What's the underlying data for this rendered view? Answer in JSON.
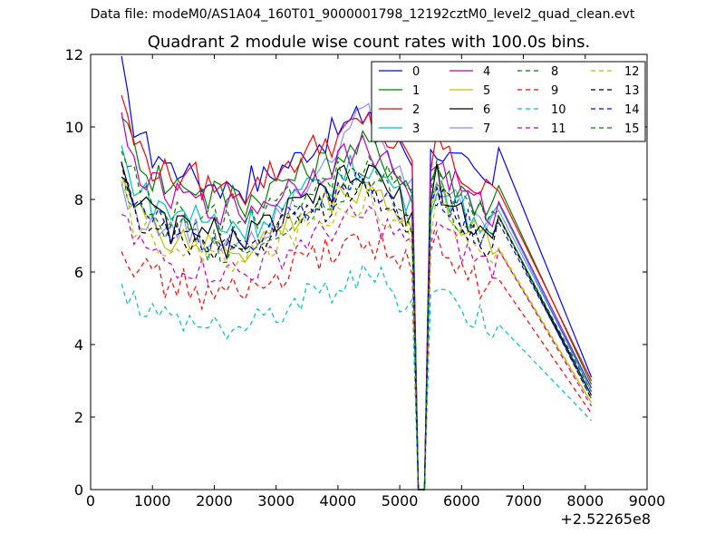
{
  "figure": {
    "suptitle": "Data file: modeM0/AS1A04_160T01_9000001798_12192cztM0_level2_quad_clean.evt",
    "title": "Quadrant 2 module wise count rates with 100.0s bins.",
    "x_offset_label": "+2.52265e8"
  },
  "chart_data": {
    "type": "line",
    "title": "Quadrant 2 module wise count rates with 100.0s bins.",
    "xlabel": "",
    "ylabel": "",
    "xlim": [
      0,
      9000
    ],
    "ylim": [
      0,
      12
    ],
    "x_offset": 252265000,
    "xticks": [
      "0",
      "1000",
      "2000",
      "3000",
      "4000",
      "5000",
      "6000",
      "7000",
      "8000",
      "9000"
    ],
    "yticks": [
      "0",
      "2",
      "4",
      "6",
      "8",
      "10",
      "12"
    ],
    "grid": false,
    "legend": {
      "placement": "top-right",
      "columns": 4
    },
    "series": [
      {
        "name": "0",
        "color": "#0000ff",
        "dash": "solid",
        "base": [
          11.6,
          10.6,
          10.1,
          9.9,
          9.5,
          9.2,
          9.3,
          9.0,
          8.9,
          8.8,
          9.0,
          8.6,
          8.7,
          8.5,
          8.4,
          8.6,
          8.4,
          8.3,
          8.5,
          8.4,
          8.3,
          8.6,
          8.5,
          8.6,
          8.7,
          8.8,
          8.9,
          9.0,
          9.1,
          9.2,
          9.4,
          9.5,
          9.6,
          9.7,
          9.8,
          9.9,
          10.0,
          10.1,
          10.2,
          10.3,
          10.5,
          10.4,
          10.2,
          10.0,
          9.9,
          9.7,
          9.5,
          9.2,
          0.0,
          0.0,
          9.2,
          9.5,
          9.3,
          9.1,
          9.0,
          8.9,
          8.8,
          8.6,
          8.5,
          8.4,
          8.4,
          9.0,
          3.1
        ]
      },
      {
        "name": "1",
        "color": "#008000",
        "dash": "solid",
        "base": [
          10.6,
          9.8,
          9.4,
          9.2,
          8.9,
          8.6,
          8.7,
          8.4,
          8.3,
          8.4,
          8.6,
          8.3,
          8.4,
          8.2,
          8.0,
          8.3,
          8.1,
          8.0,
          8.2,
          8.0,
          7.9,
          8.1,
          8.0,
          8.2,
          8.3,
          8.4,
          8.5,
          8.6,
          8.6,
          8.7,
          8.8,
          8.9,
          9.0,
          9.0,
          9.1,
          9.2,
          9.3,
          9.3,
          9.4,
          9.5,
          9.5,
          9.3,
          9.1,
          9.0,
          8.9,
          8.7,
          8.5,
          8.2,
          0.0,
          0.0,
          8.5,
          9.0,
          8.7,
          8.5,
          8.4,
          8.3,
          8.1,
          8.0,
          7.9,
          7.8,
          7.8,
          8.3,
          2.9
        ]
      },
      {
        "name": "2",
        "color": "#ff0000",
        "dash": "solid",
        "base": [
          11.0,
          10.1,
          9.6,
          9.4,
          9.1,
          8.9,
          8.9,
          8.7,
          8.6,
          8.6,
          8.8,
          8.5,
          8.6,
          8.4,
          8.3,
          8.5,
          8.3,
          8.2,
          8.4,
          8.3,
          8.2,
          8.5,
          8.4,
          8.6,
          8.7,
          8.8,
          8.9,
          9.0,
          9.1,
          9.2,
          9.3,
          9.4,
          9.5,
          9.6,
          9.6,
          9.7,
          9.8,
          9.9,
          10.0,
          10.0,
          10.1,
          9.9,
          9.8,
          9.6,
          9.5,
          9.3,
          9.1,
          8.9,
          0.0,
          0.0,
          9.0,
          9.7,
          9.4,
          9.1,
          8.9,
          8.7,
          8.5,
          8.4,
          8.3,
          8.2,
          8.1,
          8.5,
          3.0
        ]
      },
      {
        "name": "3",
        "color": "#00bfbf",
        "dash": "solid",
        "base": [
          9.4,
          8.7,
          8.5,
          8.3,
          8.1,
          7.9,
          7.9,
          7.7,
          7.6,
          7.6,
          7.8,
          7.5,
          7.6,
          7.4,
          7.3,
          7.5,
          7.3,
          7.2,
          7.4,
          7.3,
          7.2,
          7.4,
          7.4,
          7.5,
          7.6,
          7.7,
          7.8,
          7.9,
          8.0,
          8.1,
          8.2,
          8.3,
          8.4,
          8.4,
          8.5,
          8.6,
          8.7,
          8.8,
          8.8,
          8.9,
          9.0,
          8.8,
          8.6,
          8.5,
          8.4,
          8.2,
          8.0,
          7.8,
          0.0,
          0.0,
          8.0,
          8.6,
          8.3,
          8.1,
          7.9,
          7.8,
          7.6,
          7.5,
          7.4,
          7.3,
          7.2,
          7.6,
          2.7
        ]
      },
      {
        "name": "4",
        "color": "#bf00bf",
        "dash": "solid",
        "base": [
          10.1,
          9.4,
          9.0,
          8.8,
          8.5,
          8.3,
          8.3,
          8.1,
          8.0,
          8.0,
          8.2,
          7.9,
          8.0,
          7.8,
          7.7,
          7.9,
          7.7,
          7.6,
          7.8,
          7.7,
          7.6,
          7.8,
          7.8,
          7.9,
          8.0,
          8.1,
          8.2,
          8.3,
          8.4,
          8.5,
          8.6,
          8.7,
          8.8,
          8.9,
          9.0,
          9.1,
          9.2,
          9.3,
          9.3,
          9.4,
          9.5,
          9.3,
          9.1,
          9.0,
          8.8,
          8.6,
          8.4,
          8.2,
          0.0,
          0.0,
          8.5,
          9.1,
          8.8,
          8.6,
          8.4,
          8.2,
          8.0,
          7.9,
          7.8,
          7.7,
          7.6,
          8.0,
          2.8
        ]
      },
      {
        "name": "5",
        "color": "#bfbf00",
        "dash": "solid",
        "base": [
          9.0,
          8.3,
          7.9,
          7.7,
          7.4,
          7.2,
          7.2,
          7.0,
          6.9,
          6.9,
          7.1,
          6.8,
          6.9,
          6.7,
          6.6,
          6.8,
          6.6,
          6.6,
          6.7,
          6.6,
          6.5,
          6.8,
          6.7,
          6.9,
          7.0,
          7.1,
          7.2,
          7.3,
          7.4,
          7.5,
          7.6,
          7.7,
          7.8,
          7.9,
          8.0,
          8.1,
          8.2,
          8.3,
          8.3,
          8.4,
          8.5,
          8.3,
          8.1,
          8.0,
          7.8,
          7.6,
          7.4,
          7.2,
          0.0,
          0.0,
          7.6,
          8.3,
          8.0,
          7.7,
          7.5,
          7.3,
          7.1,
          7.0,
          6.9,
          6.8,
          6.7,
          7.0,
          2.4
        ]
      },
      {
        "name": "6",
        "color": "#000000",
        "dash": "solid",
        "base": [
          9.2,
          8.5,
          8.2,
          8.0,
          7.7,
          7.5,
          7.5,
          7.3,
          7.2,
          7.2,
          7.4,
          7.1,
          7.2,
          7.0,
          6.9,
          7.1,
          6.9,
          6.8,
          7.0,
          6.9,
          6.8,
          7.1,
          7.0,
          7.2,
          7.3,
          7.4,
          7.5,
          7.6,
          7.7,
          7.8,
          7.9,
          8.0,
          8.1,
          8.2,
          8.3,
          8.4,
          8.5,
          8.6,
          8.6,
          8.7,
          8.8,
          8.6,
          8.4,
          8.3,
          8.1,
          7.9,
          7.7,
          7.5,
          0.0,
          0.0,
          8.0,
          8.6,
          8.3,
          8.0,
          7.8,
          7.6,
          7.4,
          7.3,
          7.2,
          7.1,
          7.0,
          7.4,
          2.6
        ]
      },
      {
        "name": "7",
        "color": "#0000ff",
        "dash": "solid",
        "opacity": 0.45,
        "base": [
          8.4,
          7.9,
          7.7,
          7.6,
          7.4,
          7.2,
          7.3,
          7.1,
          7.0,
          7.1,
          7.3,
          7.0,
          7.1,
          6.9,
          6.8,
          7.0,
          6.8,
          6.8,
          7.0,
          6.9,
          6.8,
          7.1,
          7.1,
          7.3,
          7.4,
          7.6,
          7.8,
          8.0,
          8.2,
          8.4,
          8.6,
          8.8,
          9.0,
          9.2,
          9.4,
          9.6,
          9.8,
          10.0,
          10.1,
          10.2,
          10.3,
          9.8,
          9.4,
          9.1,
          8.9,
          8.7,
          8.5,
          8.2,
          0.0,
          0.0,
          8.3,
          8.7,
          8.4,
          8.2,
          8.0,
          7.9,
          7.8,
          7.7,
          7.6,
          7.5,
          7.5,
          7.9,
          2.8
        ]
      },
      {
        "name": "8",
        "color": "#008000",
        "dash": "dashed",
        "base": [
          8.8,
          8.2,
          7.9,
          7.7,
          7.5,
          7.3,
          7.3,
          7.1,
          7.0,
          7.0,
          7.2,
          6.9,
          7.0,
          6.8,
          6.7,
          6.9,
          6.7,
          6.6,
          6.8,
          6.7,
          6.6,
          6.9,
          6.8,
          7.0,
          7.1,
          7.2,
          7.3,
          7.4,
          7.5,
          7.6,
          7.7,
          7.8,
          7.9,
          8.0,
          8.1,
          8.2,
          8.3,
          8.4,
          8.4,
          8.5,
          8.6,
          8.4,
          8.2,
          8.1,
          7.9,
          7.7,
          7.5,
          7.3,
          0.0,
          0.0,
          7.7,
          8.3,
          8.0,
          7.8,
          7.6,
          7.4,
          7.2,
          7.1,
          7.0,
          6.9,
          6.8,
          7.2,
          2.5
        ]
      },
      {
        "name": "9",
        "color": "#ff0000",
        "dash": "dashed",
        "base": [
          7.0,
          6.5,
          6.3,
          6.2,
          6.0,
          5.8,
          5.8,
          5.7,
          5.6,
          5.6,
          5.7,
          5.5,
          5.6,
          5.4,
          5.4,
          5.5,
          5.4,
          5.3,
          5.5,
          5.4,
          5.3,
          5.5,
          5.5,
          5.6,
          5.7,
          5.8,
          5.9,
          6.0,
          6.1,
          6.2,
          6.3,
          6.3,
          6.4,
          6.5,
          6.6,
          6.6,
          6.7,
          6.8,
          6.8,
          6.9,
          7.0,
          6.8,
          6.7,
          6.6,
          6.5,
          6.3,
          6.2,
          6.0,
          0.0,
          0.0,
          6.4,
          6.8,
          6.5,
          6.3,
          6.1,
          6.0,
          5.9,
          5.8,
          5.7,
          5.6,
          5.5,
          5.8,
          2.1
        ]
      },
      {
        "name": "10",
        "color": "#00bfbf",
        "dash": "dashed",
        "base": [
          5.9,
          5.5,
          5.3,
          5.2,
          5.0,
          4.9,
          4.9,
          4.8,
          4.7,
          4.7,
          4.8,
          4.6,
          4.7,
          4.5,
          4.5,
          4.6,
          4.5,
          4.4,
          4.6,
          4.5,
          4.4,
          4.6,
          4.6,
          4.7,
          4.8,
          4.9,
          5.0,
          5.1,
          5.1,
          5.2,
          5.3,
          5.3,
          5.4,
          5.5,
          5.5,
          5.6,
          5.7,
          5.7,
          5.8,
          5.9,
          5.9,
          5.8,
          5.7,
          5.6,
          5.5,
          5.3,
          5.2,
          5.1,
          0.0,
          0.0,
          5.4,
          5.8,
          5.5,
          5.3,
          5.1,
          5.0,
          4.9,
          4.8,
          4.8,
          4.7,
          4.6,
          4.9,
          1.9
        ]
      },
      {
        "name": "11",
        "color": "#bf00bf",
        "dash": "dashed",
        "base": [
          7.6,
          7.1,
          6.9,
          6.8,
          6.6,
          6.4,
          6.4,
          6.3,
          6.2,
          6.2,
          6.3,
          6.1,
          6.2,
          6.0,
          6.0,
          6.1,
          6.0,
          5.9,
          6.1,
          6.0,
          5.9,
          6.1,
          6.1,
          6.2,
          6.3,
          6.4,
          6.5,
          6.6,
          6.7,
          6.8,
          6.9,
          6.9,
          7.0,
          7.1,
          7.2,
          7.2,
          7.3,
          7.4,
          7.4,
          7.5,
          7.6,
          7.4,
          7.3,
          7.2,
          7.1,
          6.9,
          6.8,
          6.6,
          0.0,
          0.0,
          7.0,
          7.4,
          7.1,
          6.9,
          6.7,
          6.6,
          6.5,
          6.4,
          6.3,
          6.2,
          6.1,
          6.4,
          2.3
        ]
      },
      {
        "name": "12",
        "color": "#bfbf00",
        "dash": "dashed",
        "base": [
          8.3,
          7.7,
          7.4,
          7.2,
          7.0,
          6.8,
          6.8,
          6.7,
          6.6,
          6.6,
          6.7,
          6.5,
          6.6,
          6.4,
          6.3,
          6.5,
          6.3,
          6.3,
          6.4,
          6.3,
          6.2,
          6.5,
          6.4,
          6.6,
          6.7,
          6.8,
          6.9,
          7.0,
          7.1,
          7.2,
          7.3,
          7.4,
          7.5,
          7.5,
          7.6,
          7.7,
          7.8,
          7.9,
          7.9,
          8.0,
          8.1,
          7.9,
          7.7,
          7.6,
          7.5,
          7.3,
          7.1,
          6.9,
          0.0,
          0.0,
          7.3,
          7.9,
          7.6,
          7.4,
          7.2,
          7.0,
          6.8,
          6.7,
          6.6,
          6.5,
          6.4,
          6.8,
          2.4
        ]
      },
      {
        "name": "13",
        "color": "#000000",
        "dash": "dashed",
        "base": [
          8.6,
          8.0,
          7.7,
          7.5,
          7.3,
          7.1,
          7.1,
          7.0,
          6.9,
          6.9,
          7.0,
          6.8,
          6.9,
          6.7,
          6.6,
          6.8,
          6.6,
          6.6,
          6.7,
          6.6,
          6.5,
          6.8,
          6.7,
          6.9,
          7.0,
          7.1,
          7.2,
          7.3,
          7.4,
          7.5,
          7.6,
          7.7,
          7.8,
          7.8,
          7.9,
          8.0,
          8.1,
          8.2,
          8.2,
          8.3,
          8.4,
          8.2,
          8.0,
          7.9,
          7.8,
          7.6,
          7.4,
          7.2,
          0.0,
          0.0,
          7.6,
          8.2,
          7.9,
          7.7,
          7.5,
          7.3,
          7.1,
          7.0,
          6.9,
          6.8,
          6.7,
          7.1,
          2.5
        ]
      },
      {
        "name": "14",
        "color": "#0000ff",
        "dash": "dashed",
        "base": [
          8.9,
          8.3,
          8.0,
          7.8,
          7.5,
          7.3,
          7.3,
          7.2,
          7.1,
          7.1,
          7.2,
          7.0,
          7.1,
          6.9,
          6.8,
          7.0,
          6.8,
          6.8,
          6.9,
          6.8,
          6.7,
          7.0,
          6.9,
          7.1,
          7.2,
          7.3,
          7.4,
          7.5,
          7.6,
          7.7,
          7.8,
          7.9,
          8.0,
          8.0,
          8.1,
          8.2,
          8.3,
          8.4,
          8.4,
          8.5,
          8.6,
          8.4,
          8.2,
          8.1,
          8.0,
          7.8,
          7.6,
          7.4,
          0.0,
          0.0,
          7.8,
          8.4,
          8.1,
          7.9,
          7.7,
          7.5,
          7.3,
          7.2,
          7.1,
          7.0,
          6.9,
          7.3,
          2.6
        ]
      },
      {
        "name": "15",
        "color": "#008000",
        "dash": "dashed",
        "base": [
          9.4,
          8.8,
          8.5,
          8.3,
          8.0,
          7.8,
          7.8,
          7.7,
          7.6,
          7.6,
          7.7,
          7.5,
          7.6,
          7.4,
          7.3,
          7.5,
          7.3,
          7.3,
          7.4,
          7.3,
          7.2,
          7.5,
          7.4,
          7.6,
          7.7,
          7.8,
          7.9,
          8.0,
          8.1,
          8.2,
          8.3,
          8.4,
          8.5,
          8.5,
          8.6,
          8.7,
          8.8,
          8.9,
          8.9,
          9.0,
          9.1,
          8.9,
          8.7,
          8.6,
          8.5,
          8.3,
          8.1,
          7.9,
          0.0,
          0.0,
          8.3,
          8.9,
          8.6,
          8.4,
          8.2,
          8.0,
          7.8,
          7.7,
          7.6,
          7.5,
          7.4,
          7.8,
          2.7
        ]
      }
    ]
  }
}
